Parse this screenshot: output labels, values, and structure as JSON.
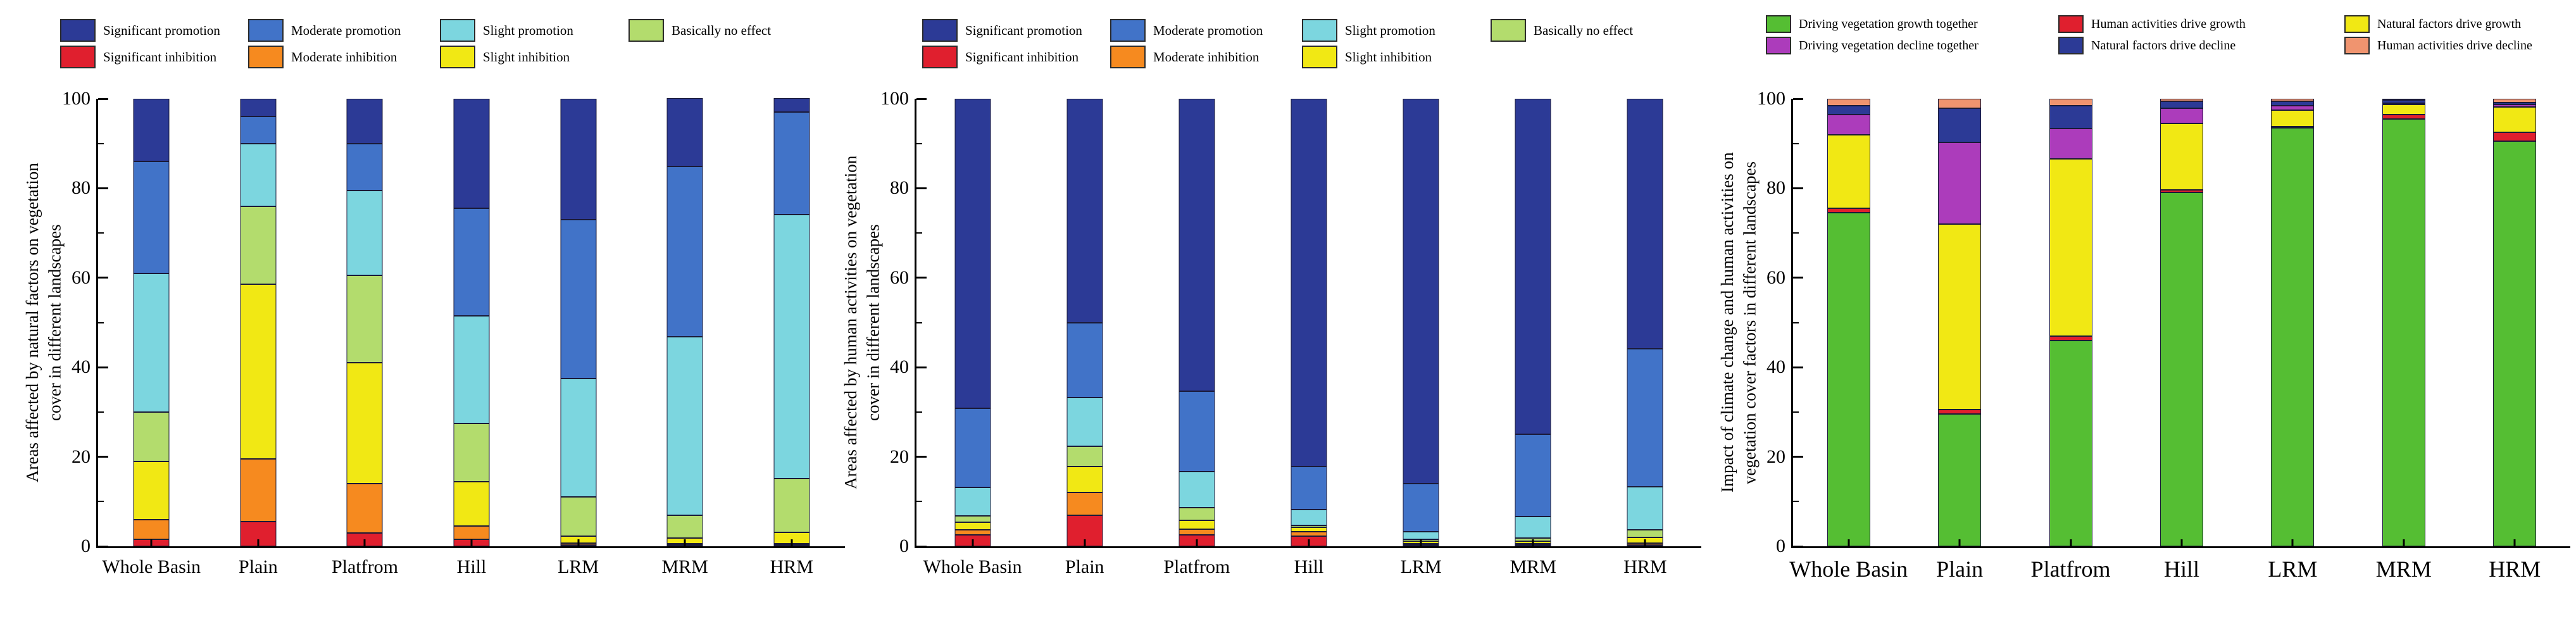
{
  "figure": {
    "panels": [
      {
        "name": "Areas affected by natural factors",
        "ylabel_line1": "Areas affected by natural factors on vegetation",
        "ylabel_line2": "cover in different landscapes",
        "legend_rows": [
          [
            {
              "label": "Significant promotion",
              "color": "#2C3A96"
            },
            {
              "label": "Moderate promotion",
              "color": "#4173C8"
            },
            {
              "label": "Slight promotion",
              "color": "#7CD6DF"
            },
            {
              "label": "Basically no effect",
              "color": "#B3DC6D"
            }
          ],
          [
            {
              "label": "Significant inhibition",
              "color": "#E01F2E"
            },
            {
              "label": "Moderate inhibition",
              "color": "#F68A1F"
            },
            {
              "label": "Slight inhibition",
              "color": "#F1E814"
            }
          ]
        ]
      },
      {
        "name": "Areas affected by human activities",
        "ylabel_line1": "Areas affected by human activities on vegetation",
        "ylabel_line2": "cover in different landscapes",
        "legend_rows": [
          [
            {
              "label": "Significant promotion",
              "color": "#2C3A96"
            },
            {
              "label": "Moderate promotion",
              "color": "#4173C8"
            },
            {
              "label": "Slight promotion",
              "color": "#7CD6DF"
            },
            {
              "label": "Basically no effect",
              "color": "#B3DC6D"
            }
          ],
          [
            {
              "label": "Significant inhibition",
              "color": "#E01F2E"
            },
            {
              "label": "Moderate inhibition",
              "color": "#F68A1F"
            },
            {
              "label": "Slight inhibition",
              "color": "#F1E814"
            }
          ]
        ]
      },
      {
        "name": "Impact of climate change and human activities",
        "ylabel_line1": "Impact of climate change and human activities on",
        "ylabel_line2": "vegetation cover factors in different landscapes",
        "legend_rows": [
          [
            {
              "label": "Driving vegetation growth together",
              "color": "#55BE33"
            },
            {
              "label": "Human activities drive growth",
              "color": "#E01F2E"
            },
            {
              "label": "Natural factors drive growth",
              "color": "#F1E814"
            }
          ],
          [
            {
              "label": "Driving vegetation decline together",
              "color": "#AC3CBB"
            },
            {
              "label": "Natural factors drive decline",
              "color": "#2C3A96"
            },
            {
              "label": "Human activities drive decline",
              "color": "#F0946F"
            }
          ]
        ]
      }
    ]
  },
  "chart_data": [
    {
      "type": "bar",
      "stacked": true,
      "title": "",
      "xlabel": "",
      "ylabel": "Areas affected by natural factors on vegetation cover in different landscapes",
      "ylim": [
        0,
        100
      ],
      "yticks": [
        0,
        20,
        40,
        60,
        80,
        100
      ],
      "yticks_minor": [
        10,
        30,
        50,
        70,
        90
      ],
      "grid": false,
      "legend_position": "top",
      "categories": [
        "Whole Basin",
        "Plain",
        "Platfrom",
        "Hill",
        "LRM",
        "MRM",
        "HRM"
      ],
      "series": [
        {
          "name": "Significant inhibition",
          "color": "#E01F2E",
          "values": [
            1.5,
            5.5,
            3.0,
            1.5,
            0.3,
            0.2,
            0.2
          ]
        },
        {
          "name": "Moderate inhibition",
          "color": "#F68A1F",
          "values": [
            4.5,
            14.0,
            11.0,
            3.0,
            0.4,
            0.3,
            0.3
          ]
        },
        {
          "name": "Slight inhibition",
          "color": "#F1E814",
          "values": [
            13.0,
            39.0,
            27.0,
            10.0,
            1.6,
            1.2,
            2.5
          ]
        },
        {
          "name": "Basically no effect",
          "color": "#B3DC6D",
          "values": [
            11.0,
            17.5,
            19.5,
            13.0,
            8.7,
            5.1,
            12.0
          ]
        },
        {
          "name": "Slight promotion",
          "color": "#7CD6DF",
          "values": [
            31.0,
            14.0,
            19.0,
            24.0,
            26.5,
            40.0,
            59.0
          ]
        },
        {
          "name": "Moderate promotion",
          "color": "#4173C8",
          "values": [
            25.0,
            6.0,
            10.5,
            24.0,
            35.5,
            38.0,
            23.0
          ]
        },
        {
          "name": "Significant promotion",
          "color": "#2C3A96",
          "values": [
            14.0,
            4.0,
            10.0,
            24.5,
            27.0,
            15.2,
            3.0
          ]
        }
      ]
    },
    {
      "type": "bar",
      "stacked": true,
      "title": "",
      "xlabel": "",
      "ylabel": "Areas affected by human activities on vegetation cover in different landscapes",
      "ylim": [
        0,
        100
      ],
      "yticks": [
        0,
        20,
        40,
        60,
        80,
        100
      ],
      "yticks_minor": [
        10,
        30,
        50,
        70,
        90
      ],
      "grid": false,
      "legend_position": "top",
      "categories": [
        "Whole Basin",
        "Plain",
        "Platfrom",
        "Hill",
        "LRM",
        "MRM",
        "HRM"
      ],
      "series": [
        {
          "name": "Significant inhibition",
          "color": "#E01F2E",
          "values": [
            2.5,
            7.0,
            2.5,
            2.3,
            0.3,
            0.3,
            0.3
          ]
        },
        {
          "name": "Moderate inhibition",
          "color": "#F68A1F",
          "values": [
            1.2,
            5.0,
            1.3,
            1.0,
            0.3,
            0.3,
            0.4
          ]
        },
        {
          "name": "Slight inhibition",
          "color": "#F1E814",
          "values": [
            1.7,
            5.8,
            2.0,
            0.9,
            0.5,
            0.6,
            1.3
          ]
        },
        {
          "name": "Basically no effect",
          "color": "#B3DC6D",
          "values": [
            1.4,
            4.5,
            2.9,
            0.5,
            0.4,
            0.6,
            1.7
          ]
        },
        {
          "name": "Slight promotion",
          "color": "#7CD6DF",
          "values": [
            6.4,
            11.0,
            8.0,
            3.5,
            1.7,
            4.8,
            9.6
          ]
        },
        {
          "name": "Moderate promotion",
          "color": "#4173C8",
          "values": [
            17.6,
            16.7,
            17.9,
            9.6,
            10.8,
            18.4,
            30.9
          ]
        },
        {
          "name": "Significant promotion",
          "color": "#2C3A96",
          "values": [
            69.2,
            50.0,
            65.4,
            82.2,
            86.0,
            75.0,
            55.8
          ]
        }
      ]
    },
    {
      "type": "bar",
      "stacked": true,
      "title": "",
      "xlabel": "",
      "ylabel": "Impact of climate change and human activities on vegetation cover factors in different landscapes",
      "ylim": [
        0,
        100
      ],
      "yticks": [
        0,
        20,
        40,
        60,
        80,
        100
      ],
      "yticks_minor": [
        10,
        30,
        50,
        70,
        90
      ],
      "grid": false,
      "legend_position": "top",
      "categories": [
        "Whole Basin",
        "Plain",
        "Platfrom",
        "Hill",
        "LRM",
        "MRM",
        "HRM"
      ],
      "series": [
        {
          "name": "Driving vegetation growth together",
          "color": "#55BE33",
          "values": [
            74.5,
            29.5,
            46.0,
            79.0,
            93.5,
            95.5,
            90.5
          ]
        },
        {
          "name": "Human activities drive growth",
          "color": "#E01F2E",
          "values": [
            1.0,
            1.0,
            1.0,
            0.6,
            0.3,
            1.0,
            2.0
          ]
        },
        {
          "name": "Natural factors drive growth",
          "color": "#F1E814",
          "values": [
            16.5,
            41.5,
            39.6,
            14.9,
            3.7,
            2.2,
            5.7
          ]
        },
        {
          "name": "Driving vegetation decline together",
          "color": "#AC3CBB",
          "values": [
            4.5,
            18.2,
            6.7,
            3.4,
            1.0,
            0.3,
            0.6
          ]
        },
        {
          "name": "Natural factors drive decline",
          "color": "#2C3A96",
          "values": [
            2.0,
            7.7,
            5.2,
            1.6,
            1.0,
            0.7,
            0.4
          ]
        },
        {
          "name": "Human activities drive decline",
          "color": "#F0946F",
          "values": [
            1.5,
            2.1,
            1.5,
            0.5,
            0.5,
            0.3,
            0.8
          ]
        }
      ]
    }
  ]
}
